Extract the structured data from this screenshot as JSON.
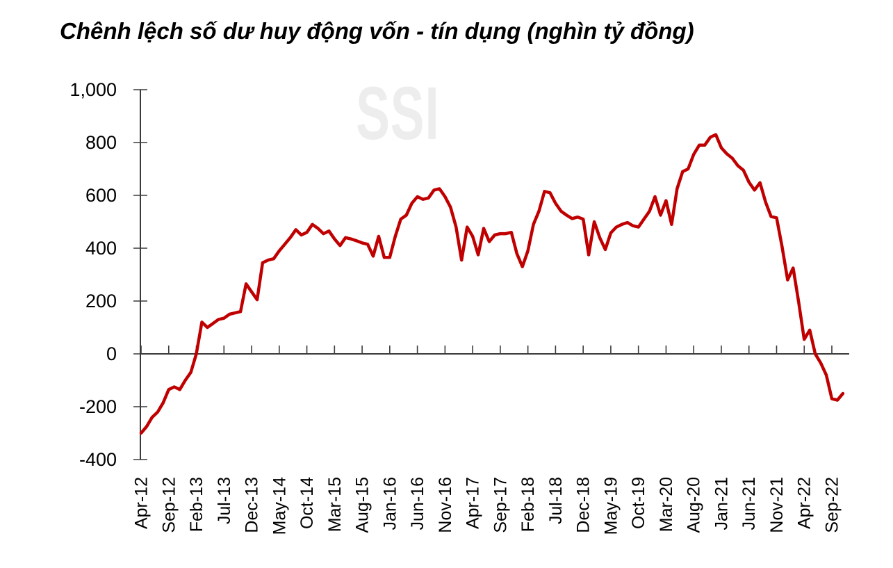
{
  "title": "Chênh lệch số dư huy động vốn - tín dụng (nghìn tỷ đồng)",
  "watermark": "SSI",
  "colors": {
    "line": "#C00000",
    "axis": "#3a3a3a",
    "label_text": "#000000",
    "watermark": "#EDEDED",
    "background": "#FFFFFF"
  },
  "y_axis": {
    "tick_labels": [
      "1,000",
      "800",
      "600",
      "400",
      "200",
      "0",
      "-200",
      "-400"
    ],
    "tick_values": [
      1000,
      800,
      600,
      400,
      200,
      0,
      -200,
      -400
    ],
    "min": -400,
    "max": 1000
  },
  "x_axis": {
    "tick_labels": [
      "Apr-12",
      "Sep-12",
      "Feb-13",
      "Jul-13",
      "Dec-13",
      "May-14",
      "Oct-14",
      "Mar-15",
      "Aug-15",
      "Jan-16",
      "Jun-16",
      "Nov-16",
      "Apr-17",
      "Sep-17",
      "Feb-18",
      "Jul-18",
      "Dec-18",
      "May-19",
      "Oct-19",
      "Mar-20",
      "Aug-20",
      "Jan-21",
      "Jun-21",
      "Nov-21",
      "Apr-22",
      "Sep-22"
    ],
    "tick_interval_months": 5
  },
  "chart_data": {
    "type": "line",
    "title": "Chênh lệch số dư huy động vốn - tín dụng (nghìn tỷ đồng)",
    "unit": "nghìn tỷ đồng",
    "ylim": [
      -400,
      1000
    ],
    "grid": false,
    "legend": false,
    "line_color": "#C00000",
    "months": [
      "Apr-12",
      "May-12",
      "Jun-12",
      "Jul-12",
      "Aug-12",
      "Sep-12",
      "Oct-12",
      "Nov-12",
      "Dec-12",
      "Jan-13",
      "Feb-13",
      "Mar-13",
      "Apr-13",
      "May-13",
      "Jun-13",
      "Jul-13",
      "Aug-13",
      "Sep-13",
      "Oct-13",
      "Nov-13",
      "Dec-13",
      "Jan-14",
      "Feb-14",
      "Mar-14",
      "Apr-14",
      "May-14",
      "Jun-14",
      "Jul-14",
      "Aug-14",
      "Sep-14",
      "Oct-14",
      "Nov-14",
      "Dec-14",
      "Jan-15",
      "Feb-15",
      "Mar-15",
      "Apr-15",
      "May-15",
      "Jun-15",
      "Jul-15",
      "Aug-15",
      "Sep-15",
      "Oct-15",
      "Nov-15",
      "Dec-15",
      "Jan-16",
      "Feb-16",
      "Mar-16",
      "Apr-16",
      "May-16",
      "Jun-16",
      "Jul-16",
      "Aug-16",
      "Sep-16",
      "Oct-16",
      "Nov-16",
      "Dec-16",
      "Jan-17",
      "Feb-17",
      "Mar-17",
      "Apr-17",
      "May-17",
      "Jun-17",
      "Jul-17",
      "Aug-17",
      "Sep-17",
      "Oct-17",
      "Nov-17",
      "Dec-17",
      "Jan-18",
      "Feb-18",
      "Mar-18",
      "Apr-18",
      "May-18",
      "Jun-18",
      "Jul-18",
      "Aug-18",
      "Sep-18",
      "Oct-18",
      "Nov-18",
      "Dec-18",
      "Jan-19",
      "Feb-19",
      "Mar-19",
      "Apr-19",
      "May-19",
      "Jun-19",
      "Jul-19",
      "Aug-19",
      "Sep-19",
      "Oct-19",
      "Nov-19",
      "Dec-19",
      "Jan-20",
      "Feb-20",
      "Mar-20",
      "Apr-20",
      "May-20",
      "Jun-20",
      "Jul-20",
      "Aug-20",
      "Sep-20",
      "Oct-20",
      "Nov-20",
      "Dec-20",
      "Jan-21",
      "Feb-21",
      "Mar-21",
      "Apr-21",
      "May-21",
      "Jun-21",
      "Jul-21",
      "Aug-21",
      "Sep-21",
      "Oct-21",
      "Nov-21",
      "Dec-21",
      "Jan-22",
      "Feb-22",
      "Mar-22",
      "Apr-22",
      "May-22",
      "Jun-22",
      "Jul-22",
      "Aug-22",
      "Sep-22",
      "Oct-22",
      "Nov-22"
    ],
    "values": [
      -300,
      -275,
      -240,
      -220,
      -185,
      -135,
      -125,
      -135,
      -100,
      -70,
      0,
      120,
      100,
      115,
      130,
      135,
      150,
      155,
      160,
      265,
      235,
      205,
      345,
      355,
      360,
      390,
      415,
      440,
      470,
      450,
      460,
      490,
      475,
      455,
      465,
      435,
      410,
      440,
      435,
      428,
      420,
      415,
      370,
      445,
      365,
      365,
      445,
      510,
      525,
      570,
      595,
      585,
      590,
      620,
      625,
      595,
      555,
      480,
      355,
      480,
      445,
      375,
      475,
      425,
      450,
      455,
      455,
      460,
      380,
      330,
      390,
      490,
      540,
      615,
      610,
      570,
      540,
      525,
      512,
      518,
      510,
      375,
      500,
      440,
      395,
      458,
      480,
      490,
      497,
      485,
      480,
      510,
      540,
      595,
      525,
      580,
      490,
      625,
      690,
      700,
      755,
      790,
      790,
      820,
      830,
      780,
      757,
      740,
      712,
      695,
      650,
      620,
      648,
      575,
      520,
      515,
      405,
      280,
      325,
      195,
      55,
      90,
      0,
      -35,
      -80,
      -170,
      -175,
      -150
    ]
  }
}
